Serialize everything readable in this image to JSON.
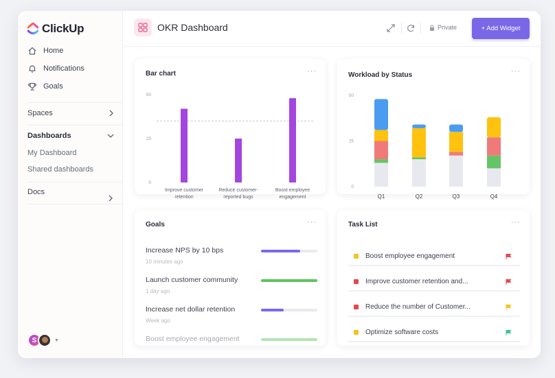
{
  "sidebar": {
    "brand": "ClickUp",
    "nav": [
      {
        "label": "Home",
        "icon": "home-icon"
      },
      {
        "label": "Notifications",
        "icon": "bell-icon"
      },
      {
        "label": "Goals",
        "icon": "trophy-icon"
      }
    ],
    "spaces_label": "Spaces",
    "dashboards_label": "Dashboards",
    "dashboards_items": [
      "My Dashboard",
      "Shared dashboards"
    ],
    "docs_label": "Docs",
    "avatar_initial": "S"
  },
  "header": {
    "title": "OKR Dashboard",
    "private_label": "Private",
    "add_widget_label": "+ Add Widget"
  },
  "widgets": {
    "bar_chart_title": "Bar chart",
    "workload_title": "Workload by Status",
    "goals_title": "Goals",
    "tasks_title": "Task List",
    "more": "···"
  },
  "goals": [
    {
      "name": "Increase NPS by 10 bps",
      "time": "10 minutes ago",
      "progress": 0.7,
      "color": "#7b68ee"
    },
    {
      "name": "Launch customer community",
      "time": "1 day ago",
      "progress": 1.0,
      "color": "#5cc55c"
    },
    {
      "name": "Increase net dollar retention",
      "time": "Week ago",
      "progress": 0.4,
      "color": "#7b68ee"
    },
    {
      "name": "Boost employee engagement",
      "time": "",
      "progress": 1.0,
      "color": "#5cc55c"
    }
  ],
  "tasks": [
    {
      "label": "Boost employee engagement",
      "dot": "#f6c221",
      "flag": "#e5484d"
    },
    {
      "label": "Improve customer retention and...",
      "dot": "#e5484d",
      "flag": "#e5484d"
    },
    {
      "label": "Reduce the number of Customer...",
      "dot": "#e5484d",
      "flag": "#f6c221"
    },
    {
      "label": "Optimize software costs",
      "dot": "#f6c221",
      "flag": "#3fc29a"
    }
  ],
  "chart_data": [
    {
      "type": "bar",
      "title": "Bar chart",
      "categories": [
        "Improve customer retention",
        "Reduce customer-reported bugs",
        "Boost employee engagement"
      ],
      "values": [
        42,
        25,
        48
      ],
      "yticks": [
        0,
        25,
        50
      ],
      "ylim": [
        0,
        50
      ],
      "reference_line": 35,
      "color": "#a545e0"
    },
    {
      "type": "bar",
      "title": "Workload by Status",
      "categories": [
        "Q1",
        "Q2",
        "Q3",
        "Q4"
      ],
      "yticks": [
        0,
        25,
        50
      ],
      "ylim": [
        0,
        50
      ],
      "series": [
        {
          "color": "#e8e9ef",
          "values": [
            13,
            15,
            17,
            10
          ]
        },
        {
          "color": "#66c466",
          "values": [
            2,
            1,
            0,
            7
          ]
        },
        {
          "color": "#f07a7a",
          "values": [
            10,
            0,
            2,
            10
          ]
        },
        {
          "color": "#ffc20e",
          "values": [
            6,
            16,
            11,
            11
          ]
        },
        {
          "color": "#4a9cf0",
          "values": [
            17,
            2,
            4,
            0
          ]
        }
      ]
    }
  ]
}
